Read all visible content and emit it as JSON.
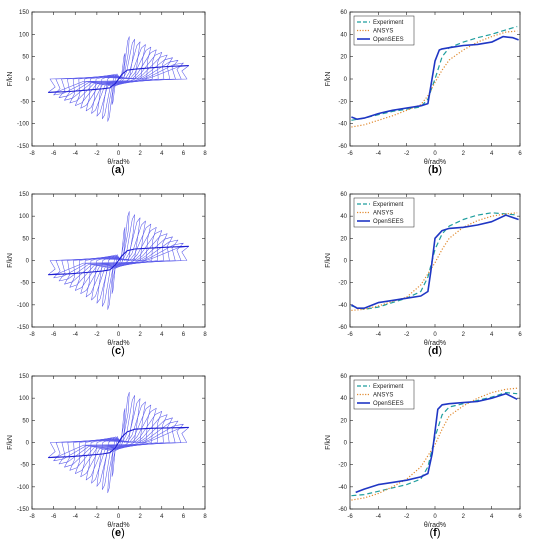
{
  "chart_data": [
    {
      "id": "a",
      "panel_label": "(a)",
      "type": "line",
      "xlabel": "θ/rad%",
      "ylabel": "F/kN",
      "xlim": [
        -8,
        8
      ],
      "ylim": [
        -150,
        150
      ],
      "xticks": [
        -8,
        -6,
        -4,
        -2,
        0,
        2,
        4,
        6,
        8
      ],
      "yticks": [
        150,
        100,
        50,
        0,
        -50,
        -100,
        -150
      ],
      "grid": false,
      "hysteresis": {
        "levels": [
          0.6,
          1.0,
          1.5,
          2.0,
          2.5,
          3.0,
          3.5,
          4.0,
          4.5,
          5.0,
          5.5,
          6.0,
          6.5
        ],
        "peak": 95,
        "peak_x": 1.0,
        "end_force": 30,
        "elastic_ratio": 0.3,
        "color": "#5a5aeb"
      },
      "skeleton": {
        "x": [
          -6.5,
          -4.5,
          -3,
          -1.5,
          -0.8,
          -0.3,
          0.3,
          0.8,
          1.5,
          3,
          4.5,
          6.5
        ],
        "y": [
          -30,
          -28,
          -25,
          -22,
          -20,
          -10,
          10,
          20,
          22,
          25,
          28,
          30
        ],
        "color": "#1e1ed2"
      }
    },
    {
      "id": "b",
      "panel_label": "(b)",
      "type": "line",
      "xlabel": "θ/rad%",
      "ylabel": "F/kN",
      "xlim": [
        -6,
        6
      ],
      "ylim": [
        -60,
        60
      ],
      "xticks": [
        -6,
        -4,
        -2,
        0,
        2,
        4,
        6
      ],
      "yticks": [
        60,
        40,
        20,
        0,
        -20,
        -40,
        -60
      ],
      "grid": false,
      "legend_position": "top-left",
      "series": [
        {
          "name": "Experiment",
          "style": "dashed",
          "color": "#1f9e9e",
          "x": [
            -5.9,
            -5,
            -4,
            -3,
            -2,
            -1,
            -0.5,
            0,
            0.5,
            1,
            2,
            3,
            4,
            5,
            5.8
          ],
          "y": [
            -37,
            -35,
            -32,
            -29,
            -27,
            -25,
            -18,
            0,
            20,
            28,
            33,
            37,
            40,
            44,
            47
          ]
        },
        {
          "name": "ANSYS",
          "style": "dotted",
          "color": "#e0892e",
          "x": [
            -5.9,
            -5,
            -4,
            -3,
            -2,
            -1,
            -0.5,
            0,
            0.5,
            1,
            2,
            3,
            4,
            5,
            5.8
          ],
          "y": [
            -43,
            -41,
            -37,
            -33,
            -28,
            -23,
            -15,
            -3,
            8,
            17,
            26,
            33,
            38,
            42,
            43
          ]
        },
        {
          "name": "OpenSEES",
          "style": "solid",
          "color": "#1f36c4",
          "x": [
            -5.9,
            -5.5,
            -5,
            -4,
            -3,
            -2,
            -1,
            -0.5,
            0,
            0.3,
            0.5,
            1,
            2,
            3,
            4,
            4.8,
            5.5,
            5.9
          ],
          "y": [
            -34,
            -36,
            -35,
            -31,
            -28,
            -26,
            -24,
            -22,
            16,
            26,
            27,
            28,
            30,
            31,
            33,
            38,
            37,
            35
          ]
        }
      ]
    },
    {
      "id": "c",
      "panel_label": "(c)",
      "type": "line",
      "xlabel": "θ/rad%",
      "ylabel": "F/kN",
      "xlim": [
        -8,
        8
      ],
      "ylim": [
        -150,
        150
      ],
      "xticks": [
        -8,
        -6,
        -4,
        -2,
        0,
        2,
        4,
        6,
        8
      ],
      "yticks": [
        150,
        100,
        50,
        0,
        -50,
        -100,
        -150
      ],
      "grid": false,
      "hysteresis": {
        "levels": [
          0.6,
          1.0,
          1.5,
          2.0,
          2.5,
          3.0,
          3.5,
          4.0,
          4.5,
          5.0,
          5.5,
          6.0,
          6.5
        ],
        "peak": 112,
        "peak_x": 0.9,
        "end_force": 32,
        "elastic_ratio": 0.3,
        "color": "#5a5aeb"
      },
      "skeleton": {
        "x": [
          -6.5,
          -4.5,
          -3,
          -1.5,
          -0.8,
          -0.3,
          0.3,
          0.8,
          1.5,
          3,
          4.5,
          6.5
        ],
        "y": [
          -32,
          -30,
          -27,
          -24,
          -21,
          -10,
          10,
          22,
          26,
          28,
          30,
          32
        ],
        "color": "#1e1ed2"
      }
    },
    {
      "id": "d",
      "panel_label": "(d)",
      "type": "line",
      "xlabel": "θ/rad%",
      "ylabel": "F/kN",
      "xlim": [
        -6,
        6
      ],
      "ylim": [
        -60,
        60
      ],
      "xticks": [
        -6,
        -4,
        -2,
        0,
        2,
        4,
        6
      ],
      "yticks": [
        60,
        40,
        20,
        0,
        -20,
        -40,
        -60
      ],
      "grid": false,
      "legend_position": "top-left",
      "series": [
        {
          "name": "Experiment",
          "style": "dashed",
          "color": "#1f9e9e",
          "x": [
            -5.9,
            -5,
            -4,
            -3,
            -2,
            -1,
            -0.5,
            0,
            0.5,
            1,
            2,
            3,
            4,
            5,
            5.8
          ],
          "y": [
            -41,
            -44,
            -42,
            -38,
            -34,
            -28,
            -15,
            10,
            24,
            31,
            37,
            41,
            43,
            42,
            41
          ]
        },
        {
          "name": "ANSYS",
          "style": "dotted",
          "color": "#e0892e",
          "x": [
            -5.9,
            -5,
            -4,
            -3,
            -2,
            -1,
            -0.5,
            0,
            0.5,
            1,
            2,
            3,
            4,
            5,
            5.8
          ],
          "y": [
            -45,
            -44,
            -41,
            -37,
            -33,
            -22,
            -12,
            -2,
            10,
            20,
            30,
            36,
            40,
            42,
            43
          ]
        },
        {
          "name": "OpenSEES",
          "style": "solid",
          "color": "#1f36c4",
          "x": [
            -5.9,
            -5.5,
            -5,
            -4,
            -3,
            -2,
            -1,
            -0.5,
            -0.3,
            0,
            0.5,
            1,
            2,
            3,
            4,
            5,
            5.9
          ],
          "y": [
            -40,
            -43,
            -43,
            -38,
            -36,
            -34,
            -32,
            -28,
            -10,
            20,
            27,
            29,
            30,
            32,
            35,
            41,
            37
          ]
        }
      ]
    },
    {
      "id": "e",
      "panel_label": "(e)",
      "type": "line",
      "xlabel": "θ/rad%",
      "ylabel": "F/kN",
      "xlim": [
        -8,
        8
      ],
      "ylim": [
        -150,
        150
      ],
      "xticks": [
        -8,
        -6,
        -4,
        -2,
        0,
        2,
        4,
        6,
        8
      ],
      "yticks": [
        150,
        100,
        50,
        0,
        -50,
        -100,
        -150
      ],
      "grid": false,
      "hysteresis": {
        "levels": [
          0.6,
          1.0,
          1.5,
          2.0,
          2.5,
          3.0,
          3.5,
          4.0,
          4.5,
          5.0,
          5.5,
          6.0,
          6.5
        ],
        "peak": 115,
        "peak_x": 0.9,
        "end_force": 34,
        "elastic_ratio": 0.3,
        "color": "#5a5aeb"
      },
      "skeleton": {
        "x": [
          -6.5,
          -4.5,
          -3,
          -1.5,
          -0.8,
          -0.3,
          0.3,
          0.8,
          1.5,
          3,
          4.5,
          6.5
        ],
        "y": [
          -34,
          -32,
          -29,
          -26,
          -23,
          -12,
          12,
          24,
          30,
          32,
          33,
          34
        ],
        "color": "#1e1ed2"
      }
    },
    {
      "id": "f",
      "panel_label": "(f)",
      "type": "line",
      "xlabel": "θ/rad%",
      "ylabel": "F/kN",
      "xlim": [
        -6,
        6
      ],
      "ylim": [
        -60,
        60
      ],
      "xticks": [
        -6,
        -4,
        -2,
        0,
        2,
        4,
        6
      ],
      "yticks": [
        60,
        40,
        20,
        0,
        -20,
        -40,
        -60
      ],
      "grid": false,
      "legend_position": "top-left",
      "series": [
        {
          "name": "Experiment",
          "style": "dashed",
          "color": "#1f9e9e",
          "x": [
            -5.9,
            -5,
            -4,
            -3,
            -2,
            -1,
            -0.5,
            0,
            0.5,
            1,
            2,
            3,
            4,
            5,
            5.8
          ],
          "y": [
            -48,
            -47,
            -44,
            -41,
            -38,
            -33,
            -22,
            5,
            25,
            32,
            35,
            38,
            41,
            45,
            44
          ]
        },
        {
          "name": "ANSYS",
          "style": "dotted",
          "color": "#e0892e",
          "x": [
            -5.9,
            -5,
            -4,
            -3,
            -2,
            -1,
            -0.5,
            0,
            0.5,
            1,
            2,
            3,
            4,
            5,
            5.8
          ],
          "y": [
            -52,
            -50,
            -46,
            -40,
            -33,
            -22,
            -12,
            -2,
            12,
            24,
            33,
            40,
            45,
            48,
            49
          ]
        },
        {
          "name": "OpenSEES",
          "style": "solid",
          "color": "#1f36c4",
          "x": [
            -5.6,
            -5,
            -4,
            -3,
            -2,
            -1,
            -0.5,
            -0.2,
            0.2,
            0.5,
            1,
            2,
            3,
            4,
            5,
            5.8
          ],
          "y": [
            -45,
            -42,
            -38,
            -36,
            -34,
            -31,
            -28,
            -10,
            30,
            34,
            35,
            36,
            37,
            40,
            44,
            39
          ]
        }
      ]
    }
  ]
}
